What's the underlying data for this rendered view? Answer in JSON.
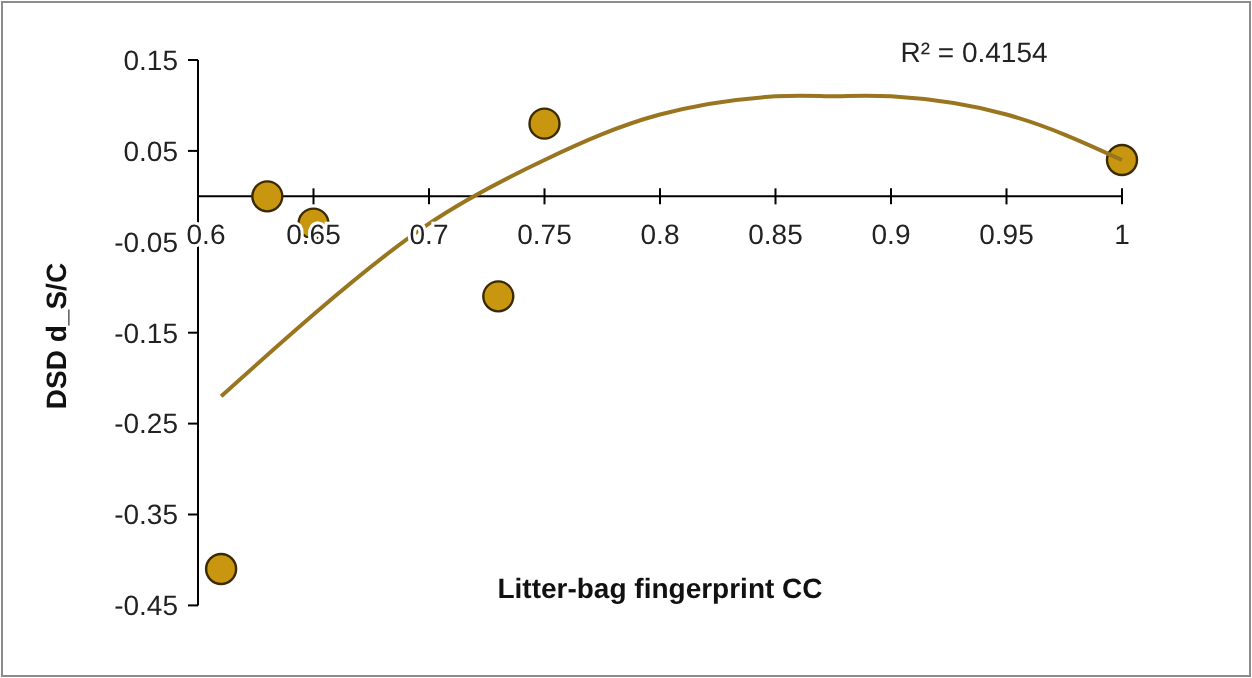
{
  "chart_data": {
    "type": "scatter",
    "xlabel": "Litter-bag fingerprint CC",
    "ylabel": "DSD  d_S/C",
    "annotations": [
      "R² = 0.4154"
    ],
    "x": [
      0.61,
      0.63,
      0.65,
      0.73,
      0.75,
      1.0
    ],
    "series": [
      {
        "color": "#c8960f",
        "marker": "circle",
        "values": [
          -0.41,
          0.0,
          -0.03,
          -0.11,
          0.08,
          0.04
        ]
      },
      {
        "type": "line",
        "color": "#9a7520",
        "marker": "none",
        "line_style": "solid",
        "x": [
          0.61,
          0.65,
          0.7,
          0.75,
          0.8,
          0.85,
          0.875,
          0.9,
          0.95,
          1.0
        ],
        "values": [
          -0.22,
          -0.13,
          -0.03,
          0.04,
          0.09,
          0.11,
          0.11,
          0.11,
          0.09,
          0.04
        ]
      }
    ],
    "xlim": [
      0.6,
      1
    ],
    "xticks": [
      0.6,
      0.65,
      0.7,
      0.75,
      0.8,
      0.85,
      0.9,
      0.95,
      1
    ],
    "ylim": [
      -0.45,
      0.15
    ],
    "yticks": [
      -0.45,
      -0.35,
      -0.25,
      -0.15,
      -0.05,
      0.05,
      0.15
    ],
    "grid": false
  }
}
